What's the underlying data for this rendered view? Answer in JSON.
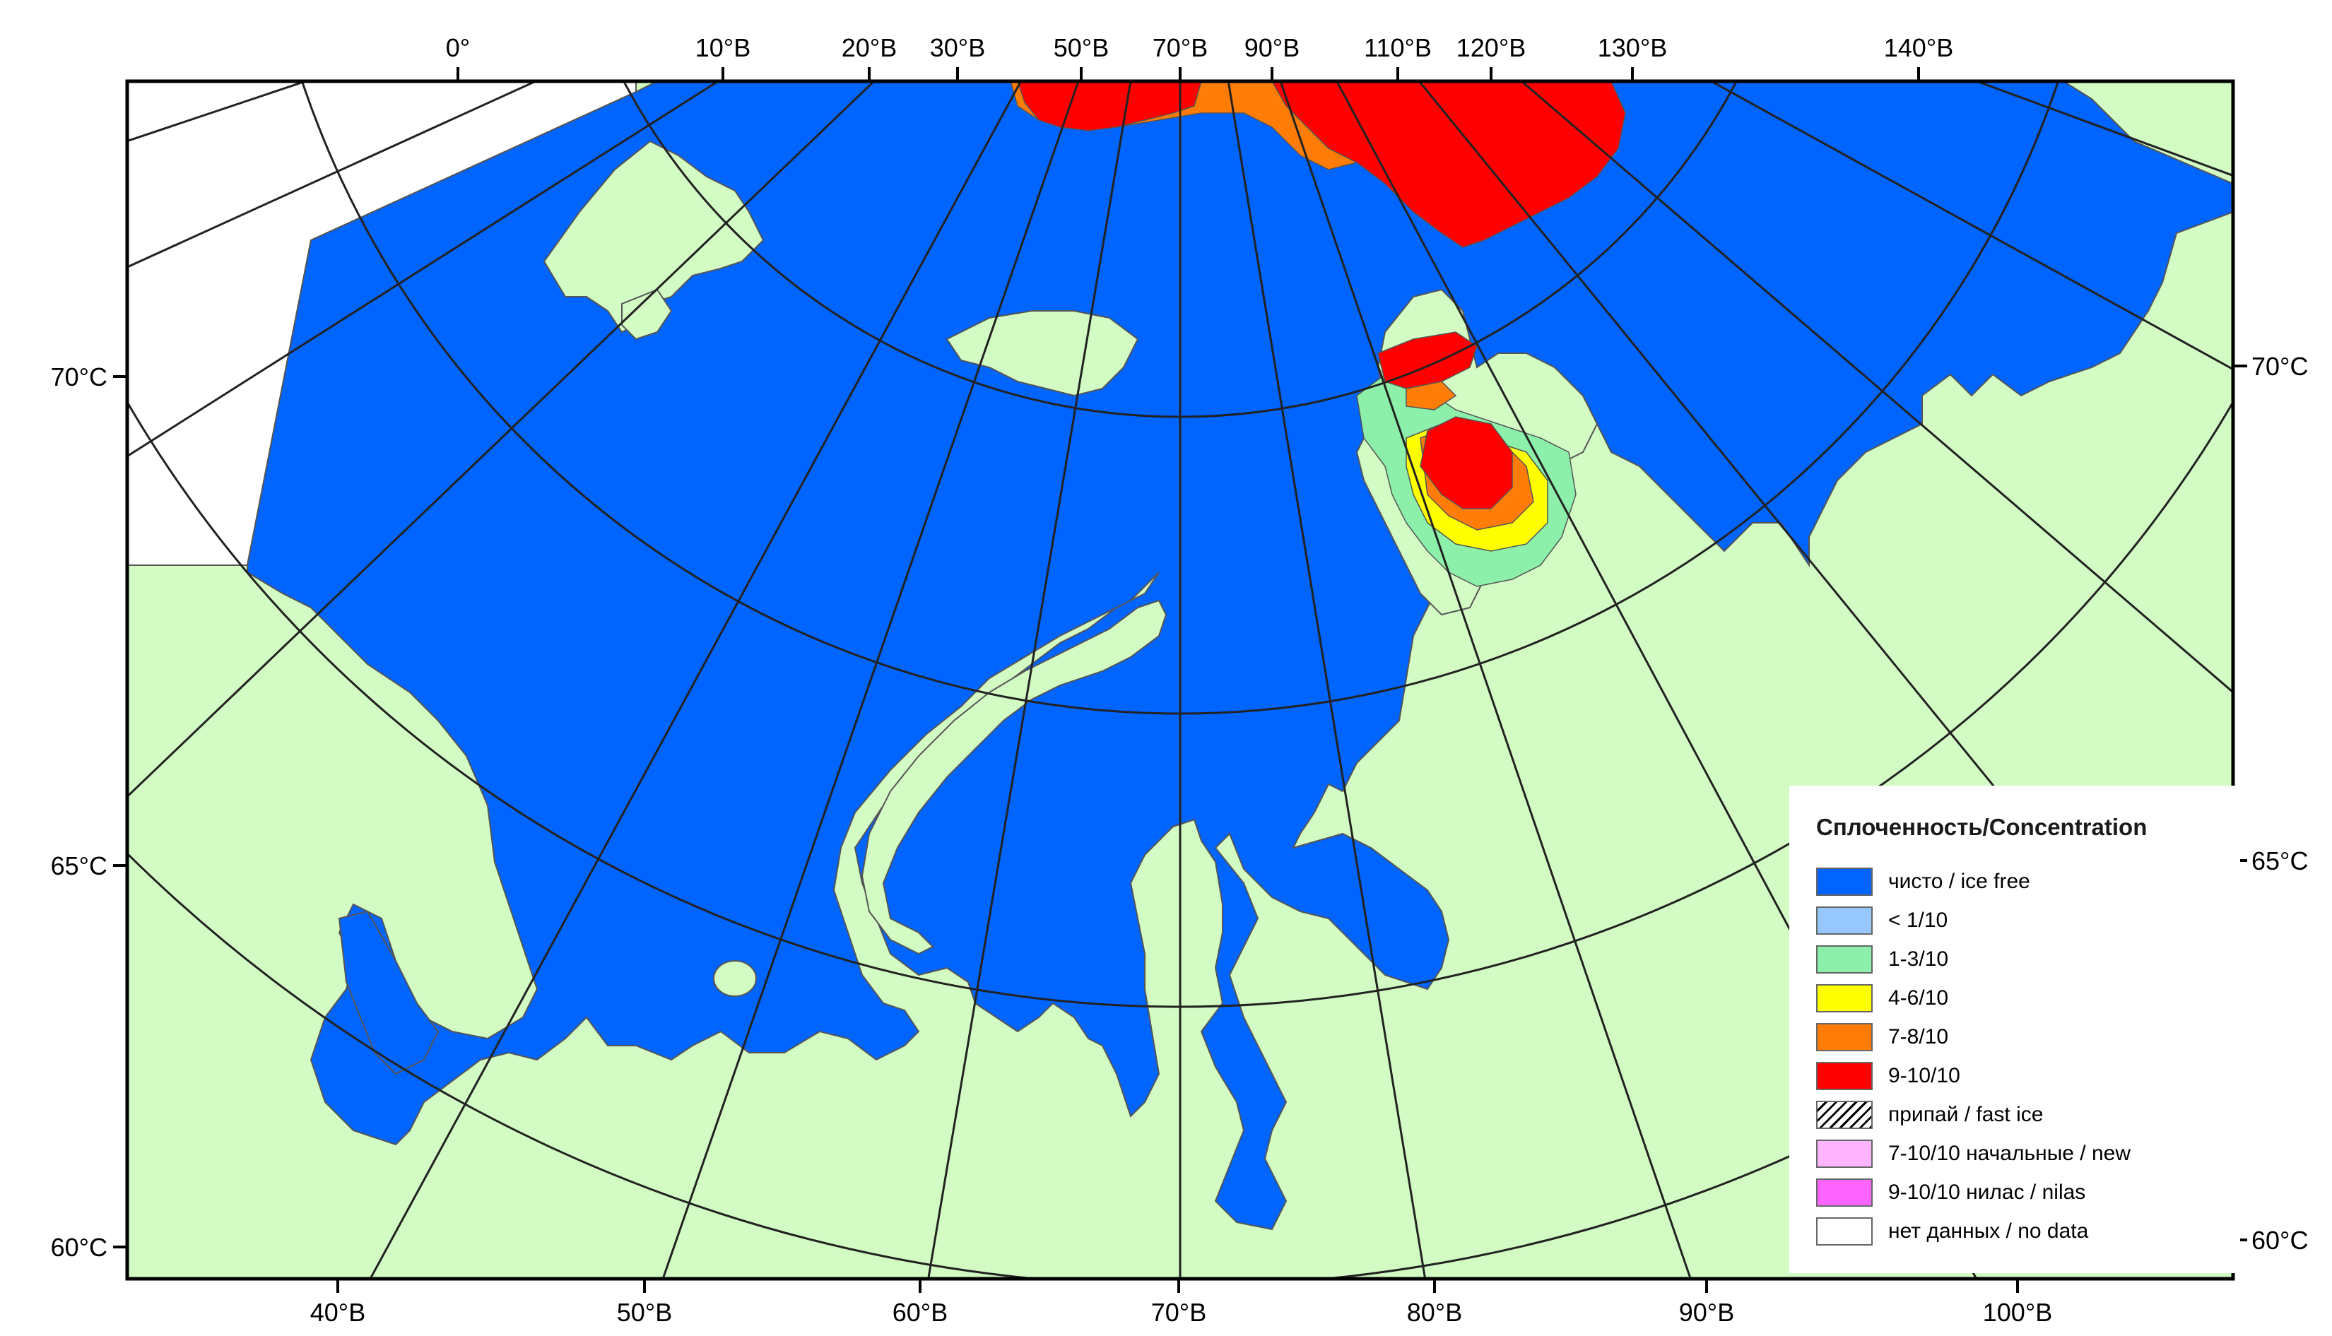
{
  "map": {
    "top_longitudes": [
      "0°",
      "10°В",
      "20°В",
      "30°В",
      "50°В",
      "70°В",
      "90°В",
      "110°В",
      "120°В",
      "130°В",
      "140°В"
    ],
    "bottom_longitudes": [
      "40°В",
      "50°В",
      "60°В",
      "70°В",
      "80°В",
      "90°В",
      "100°В"
    ],
    "left_latitudes": [
      "70°С",
      "65°С",
      "60°С"
    ],
    "right_latitudes": [
      "70°С",
      "65°С",
      "60°С"
    ]
  },
  "legend": {
    "title": "Сплоченность/Concentration",
    "items": [
      {
        "label": "чисто / ice free",
        "color": "#0064ff"
      },
      {
        "label": "< 1/10",
        "color": "#96c8ff"
      },
      {
        "label": "1-3/10",
        "color": "#8cf0aa"
      },
      {
        "label": "4-6/10",
        "color": "#ffff00"
      },
      {
        "label": "7-8/10",
        "color": "#ff7d07"
      },
      {
        "label": "9-10/10",
        "color": "#ff0000"
      },
      {
        "label": "припай / fast ice",
        "color": "hatch"
      },
      {
        "label": "7-10/10 начальные / new",
        "color": "#ffb4ff"
      },
      {
        "label": "9-10/10 нилас / nilas",
        "color": "#ff64ff"
      },
      {
        "label": "нет данных / no data",
        "color": "#ffffff"
      }
    ]
  },
  "colors": {
    "sea": "#0064ff",
    "land": "#d2fcc4",
    "no_data": "#ffffff",
    "grid": "#222222",
    "coast": "#555555"
  }
}
